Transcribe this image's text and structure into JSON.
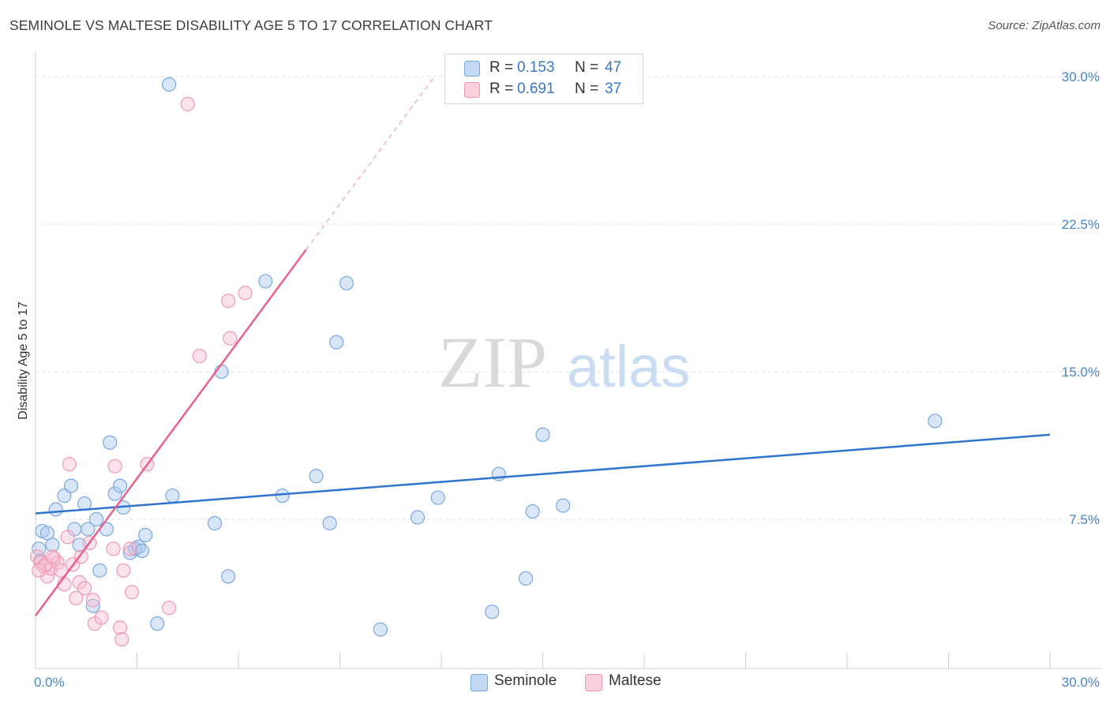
{
  "header": {
    "title": "SEMINOLE VS MALTESE DISABILITY AGE 5 TO 17 CORRELATION CHART",
    "source": "Source: ZipAtlas.com"
  },
  "watermark": {
    "zip": "ZIP",
    "atlas": "atlas"
  },
  "legend": {
    "seminole": {
      "r_label": "R =",
      "r_value": "0.153",
      "n_label": "N =",
      "n_value": "47"
    },
    "maltese": {
      "r_label": "R =",
      "r_value": "0.691",
      "n_label": "N =",
      "n_value": "37"
    }
  },
  "bottom_legend": {
    "seminole": "Seminole",
    "maltese": "Maltese"
  },
  "chart_data": {
    "type": "scatter",
    "title": "SEMINOLE VS MALTESE DISABILITY AGE 5 TO 17 CORRELATION CHART",
    "xlabel": "",
    "ylabel": "Disability Age 5 to 17",
    "xlim": [
      0,
      30
    ],
    "ylim": [
      0,
      31
    ],
    "x_tick_labels": [
      "0.0%",
      "30.0%"
    ],
    "y_ticks": [
      7.5,
      15.0,
      22.5,
      30.0
    ],
    "y_tick_labels": [
      "7.5%",
      "15.0%",
      "22.5%",
      "30.0%"
    ],
    "colors": {
      "seminole": "#8ab4e8",
      "seminole_line": "#2f74cf",
      "maltese": "#f4a6be",
      "maltese_line": "#e8608c"
    },
    "series": [
      {
        "name": "Seminole",
        "r": 0.153,
        "n": 47,
        "trend": {
          "x": [
            0,
            30
          ],
          "y": [
            7.8,
            11.8
          ]
        },
        "points": [
          [
            0.2,
            6.9
          ],
          [
            0.35,
            6.8
          ],
          [
            0.5,
            6.2
          ],
          [
            0.6,
            8.0
          ],
          [
            0.85,
            8.7
          ],
          [
            1.05,
            9.2
          ],
          [
            1.15,
            7.0
          ],
          [
            1.3,
            6.2
          ],
          [
            1.45,
            8.3
          ],
          [
            1.55,
            7.0
          ],
          [
            1.8,
            7.5
          ],
          [
            2.1,
            7.0
          ],
          [
            1.9,
            4.9
          ],
          [
            1.7,
            3.1
          ],
          [
            2.2,
            11.4
          ],
          [
            2.35,
            8.8
          ],
          [
            2.5,
            9.2
          ],
          [
            2.6,
            8.1
          ],
          [
            2.8,
            5.8
          ],
          [
            2.95,
            6.0
          ],
          [
            3.05,
            6.1
          ],
          [
            3.15,
            5.9
          ],
          [
            3.25,
            6.7
          ],
          [
            3.6,
            2.2
          ],
          [
            4.05,
            8.7
          ],
          [
            3.95,
            29.6
          ],
          [
            5.3,
            7.3
          ],
          [
            5.5,
            15.0
          ],
          [
            5.7,
            4.6
          ],
          [
            6.8,
            19.6
          ],
          [
            7.3,
            8.7
          ],
          [
            8.3,
            9.7
          ],
          [
            8.7,
            7.3
          ],
          [
            8.9,
            16.5
          ],
          [
            9.2,
            19.5
          ],
          [
            10.2,
            1.9
          ],
          [
            11.3,
            7.6
          ],
          [
            11.9,
            8.6
          ],
          [
            13.5,
            2.8
          ],
          [
            13.7,
            9.8
          ],
          [
            14.5,
            4.5
          ],
          [
            14.7,
            7.9
          ],
          [
            15.0,
            11.8
          ],
          [
            15.6,
            8.2
          ],
          [
            26.6,
            12.5
          ],
          [
            0.1,
            6.0
          ],
          [
            0.15,
            5.4
          ]
        ]
      },
      {
        "name": "Maltese",
        "r": 0.691,
        "n": 37,
        "trend": {
          "x": [
            0,
            8.0
          ],
          "y": [
            2.6,
            21.2
          ]
        },
        "trend_dashed": {
          "x": [
            8.0,
            11.8
          ],
          "y": [
            21.2,
            30.0
          ]
        },
        "points": [
          [
            0.05,
            5.6
          ],
          [
            0.15,
            5.3
          ],
          [
            0.25,
            5.1
          ],
          [
            0.35,
            4.6
          ],
          [
            0.45,
            5.0
          ],
          [
            0.55,
            5.5
          ],
          [
            0.65,
            5.3
          ],
          [
            0.75,
            4.9
          ],
          [
            0.85,
            4.2
          ],
          [
            0.95,
            6.6
          ],
          [
            1.0,
            10.3
          ],
          [
            1.1,
            5.2
          ],
          [
            1.2,
            3.5
          ],
          [
            1.3,
            4.3
          ],
          [
            1.35,
            5.6
          ],
          [
            1.45,
            4.0
          ],
          [
            1.6,
            6.3
          ],
          [
            1.7,
            3.4
          ],
          [
            1.75,
            2.2
          ],
          [
            1.95,
            2.5
          ],
          [
            2.3,
            6.0
          ],
          [
            2.35,
            10.2
          ],
          [
            2.5,
            2.0
          ],
          [
            2.55,
            1.4
          ],
          [
            2.6,
            4.9
          ],
          [
            2.8,
            6.0
          ],
          [
            2.85,
            3.8
          ],
          [
            3.3,
            10.3
          ],
          [
            3.95,
            3.0
          ],
          [
            4.5,
            28.6
          ],
          [
            4.85,
            15.8
          ],
          [
            5.7,
            18.6
          ],
          [
            5.75,
            16.7
          ],
          [
            6.2,
            19.0
          ],
          [
            0.3,
            5.2
          ],
          [
            0.5,
            5.6
          ],
          [
            0.1,
            4.9
          ]
        ]
      }
    ]
  }
}
